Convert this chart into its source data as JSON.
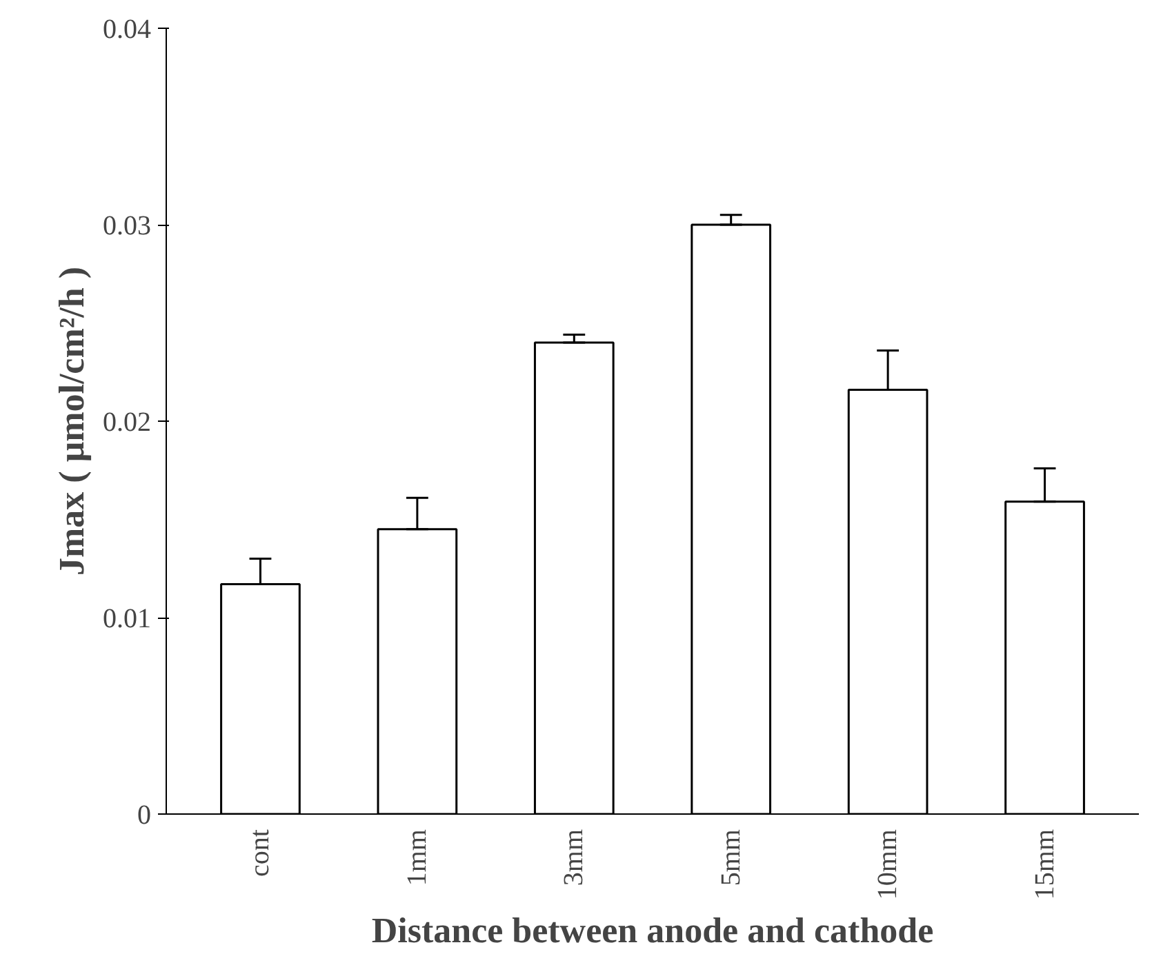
{
  "chart_data": {
    "type": "bar",
    "xlabel": "Distance between anode and cathode",
    "ylabel": "Jmax ( μmol/cm²/h )",
    "categories": [
      "cont",
      "1mm",
      "3mm",
      "5mm",
      "10mm",
      "15mm"
    ],
    "values": [
      0.0117,
      0.0145,
      0.024,
      0.03,
      0.0216,
      0.0159
    ],
    "errors": [
      [
        0.0117,
        0.013
      ],
      [
        0.0145,
        0.0161
      ],
      [
        0.024,
        0.0244
      ],
      [
        0.03,
        0.0305
      ],
      [
        0.0216,
        0.0236
      ],
      [
        0.0159,
        0.0176
      ]
    ],
    "color": "#ffffff",
    "ylim": [
      0,
      0.04
    ],
    "yticks": [
      0,
      0.01,
      0.02,
      0.03,
      0.04
    ],
    "grid": false
  }
}
